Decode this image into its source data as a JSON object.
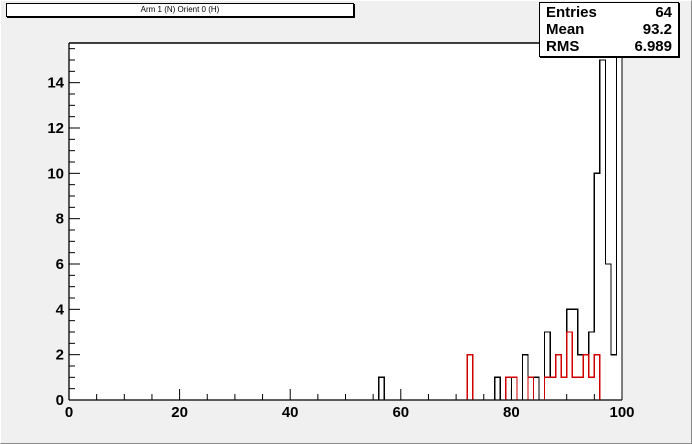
{
  "title": "Arm 1 (N) Orient 0 (H)",
  "stats": [
    {
      "key": "Entries",
      "value": "64"
    },
    {
      "key": "Mean",
      "value": "93.2"
    },
    {
      "key": "RMS",
      "value": "6.989"
    }
  ],
  "colors": {
    "background": "#f0f0f0",
    "series_black": "#000000",
    "series_red": "#d00000"
  },
  "chart_data": {
    "type": "histogram",
    "title": "Arm 1 (N) Orient 0 (H)",
    "xlabel": "",
    "ylabel": "",
    "xlim": [
      0,
      100
    ],
    "ylim": [
      0,
      15.75
    ],
    "bin_width": 1,
    "x_ticks": [
      0,
      20,
      40,
      60,
      80,
      100
    ],
    "y_ticks": [
      0,
      2,
      4,
      6,
      8,
      10,
      12,
      14
    ],
    "x_tick_labels": [
      "0",
      "20",
      "40",
      "60",
      "80",
      "100"
    ],
    "y_tick_labels": [
      "0",
      "2",
      "4",
      "6",
      "8",
      "10",
      "12",
      "14"
    ],
    "series": [
      {
        "color": "#000000",
        "bins": [
          {
            "x": 56,
            "y": 1
          },
          {
            "x": 77,
            "y": 1
          },
          {
            "x": 80,
            "y": 1
          },
          {
            "x": 82,
            "y": 2
          },
          {
            "x": 84,
            "y": 1
          },
          {
            "x": 86,
            "y": 3
          },
          {
            "x": 87,
            "y": 1
          },
          {
            "x": 88,
            "y": 2
          },
          {
            "x": 89,
            "y": 1
          },
          {
            "x": 90,
            "y": 4
          },
          {
            "x": 91,
            "y": 4
          },
          {
            "x": 92,
            "y": 2
          },
          {
            "x": 93,
            "y": 2
          },
          {
            "x": 94,
            "y": 3
          },
          {
            "x": 95,
            "y": 10
          },
          {
            "x": 96,
            "y": 15
          },
          {
            "x": 97,
            "y": 6
          },
          {
            "x": 98,
            "y": 2
          },
          {
            "x": 99,
            "y": 4
          },
          {
            "x": 100,
            "y": 16
          }
        ]
      },
      {
        "color": "#d00000",
        "bins": [
          {
            "x": 72,
            "y": 2
          },
          {
            "x": 79,
            "y": 1
          },
          {
            "x": 80,
            "y": 1
          },
          {
            "x": 83,
            "y": 1
          },
          {
            "x": 86,
            "y": 1
          },
          {
            "x": 87,
            "y": 1
          },
          {
            "x": 88,
            "y": 2
          },
          {
            "x": 89,
            "y": 1
          },
          {
            "x": 90,
            "y": 3
          },
          {
            "x": 91,
            "y": 1
          },
          {
            "x": 92,
            "y": 1
          },
          {
            "x": 93,
            "y": 2
          },
          {
            "x": 94,
            "y": 1
          },
          {
            "x": 95,
            "y": 2
          }
        ]
      }
    ]
  }
}
